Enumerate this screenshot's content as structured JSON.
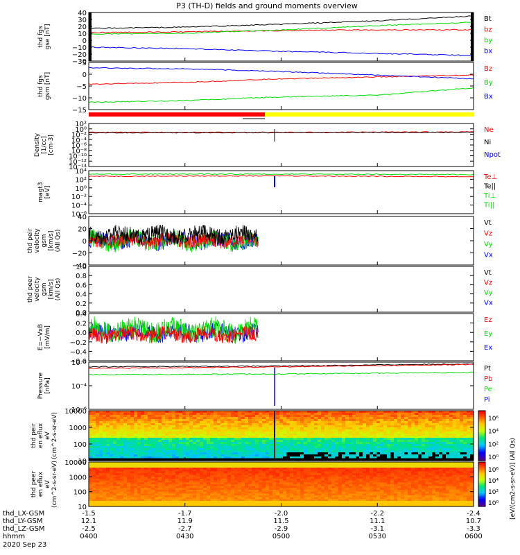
{
  "title": "P3 (TH-D) fields and ground moments overview",
  "colors": {
    "black": "#000000",
    "red": "#ff0000",
    "green": "#00dd00",
    "blue": "#0000ff",
    "yellow": "#ffff00"
  },
  "footer": {
    "rows": [
      {
        "label": "thd_LX-GSM",
        "values": [
          "-1.5",
          "-1.7",
          "-2.0",
          "-2.2",
          "-2.4"
        ]
      },
      {
        "label": "thd_LY-GSM",
        "values": [
          "12.1",
          "11.9",
          "11.5",
          "11.1",
          "10.7"
        ]
      },
      {
        "label": "thd_LZ-GSM",
        "values": [
          "-2.5",
          "-2.7",
          "-2.9",
          "-3.1",
          "-3.3"
        ]
      },
      {
        "label": "hhmm",
        "values": [
          "0400",
          "0430",
          "0500",
          "0530",
          "0600"
        ]
      }
    ],
    "date": "2020 Sep 23"
  },
  "colorbar": {
    "label": "[eV/(cm2-s-sr-eV)] (All Qs)",
    "ticks_upper": [
      "10⁶",
      "10⁴",
      "10²",
      "10⁰"
    ],
    "ticks_lower": [
      "10⁶",
      "10⁴",
      "10²",
      "10⁰"
    ]
  },
  "chart_data": [
    {
      "type": "line",
      "ylabel": "thd fgs gse [nT]",
      "ylim": [
        -30,
        40
      ],
      "yticks": [
        "40",
        "30",
        "20",
        "10",
        "0",
        "−10",
        "−20",
        "−30"
      ],
      "legend": [
        {
          "name": "Bt",
          "color": "black"
        },
        {
          "name": "bz",
          "color": "red"
        },
        {
          "name": "by",
          "color": "green"
        },
        {
          "name": "bx",
          "color": "blue"
        }
      ],
      "series": [
        {
          "name": "Bt",
          "color": "black",
          "x": [
            0,
            0.25,
            0.5,
            0.75,
            1
          ],
          "y": [
            17,
            19,
            23,
            28,
            35
          ]
        },
        {
          "name": "bz",
          "color": "red",
          "x": [
            0,
            0.25,
            0.5,
            0.75,
            1
          ],
          "y": [
            11,
            12,
            14,
            15,
            15
          ]
        },
        {
          "name": "by",
          "color": "green",
          "x": [
            0,
            0.25,
            0.5,
            0.75,
            1
          ],
          "y": [
            9,
            10,
            15,
            21,
            26
          ]
        },
        {
          "name": "bx",
          "color": "blue",
          "x": [
            0,
            0.25,
            0.5,
            0.75,
            1
          ],
          "y": [
            -10,
            -12,
            -16,
            -19,
            -22
          ]
        }
      ]
    },
    {
      "type": "line",
      "ylabel": "thd fgs gsm [nT]",
      "ylim": [
        -18,
        8
      ],
      "yticks": [
        "5",
        "0",
        "−5",
        "−10",
        "−15"
      ],
      "legend": [
        {
          "name": "Bz",
          "color": "red"
        },
        {
          "name": "By",
          "color": "green"
        },
        {
          "name": "Bx",
          "color": "blue"
        }
      ],
      "series": [
        {
          "name": "Bz",
          "color": "red",
          "x": [
            0,
            0.25,
            0.5,
            0.75,
            1
          ],
          "y": [
            -4,
            -3,
            -1,
            0,
            1
          ]
        },
        {
          "name": "By",
          "color": "green",
          "x": [
            0,
            0.25,
            0.5,
            0.75,
            1
          ],
          "y": [
            -14,
            -13,
            -11,
            -10,
            -6
          ]
        },
        {
          "name": "Bx",
          "color": "blue",
          "x": [
            0,
            0.25,
            0.5,
            0.75,
            1
          ],
          "y": [
            5,
            4.5,
            3,
            1,
            -1
          ]
        }
      ]
    },
    {
      "type": "line",
      "ylabel": "Density [1/cc] [cm-3]",
      "ylim": [
        -14,
        4
      ],
      "yticks": [
        "10²",
        "10⁰",
        "10⁻²",
        "10⁻⁴",
        "10⁻⁶",
        "10⁻⁸",
        "10⁻¹⁰",
        "10⁻¹²",
        "10⁻¹⁴"
      ],
      "legend": [
        {
          "name": "Ne",
          "color": "red"
        },
        {
          "name": "Ni",
          "color": "black"
        },
        {
          "name": "Npot",
          "color": "blue"
        }
      ],
      "series": [
        {
          "name": "Ne",
          "color": "red",
          "x": [
            0,
            0.5,
            1
          ],
          "y": [
            0.3,
            0.3,
            0.5
          ]
        },
        {
          "name": "Ni",
          "color": "black",
          "x": [
            0,
            0.5,
            1
          ],
          "y": [
            0.1,
            0.2,
            0.3
          ]
        }
      ]
    },
    {
      "type": "line",
      "ylabel": "magt3 [eV]",
      "ylim": [
        -6,
        4
      ],
      "yticks": [
        "10⁴",
        "10²",
        "10⁰",
        "10⁻²",
        "10⁻⁴",
        "10⁻⁶"
      ],
      "legend": [
        {
          "name": "Te⊥",
          "color": "red"
        },
        {
          "name": "Te||",
          "color": "black"
        },
        {
          "name": "Ti⊥",
          "color": "green"
        },
        {
          "name": "Ti||",
          "color": "green"
        }
      ],
      "series": [
        {
          "name": "Ti",
          "color": "green",
          "x": [
            0,
            0.5,
            1
          ],
          "y": [
            3.2,
            3.2,
            3.1
          ]
        },
        {
          "name": "Te",
          "color": "red",
          "x": [
            0,
            0.5,
            1
          ],
          "y": [
            2.7,
            2.8,
            2.6
          ]
        }
      ]
    },
    {
      "type": "line",
      "ylabel": "thd peir velocity gsm [km/s] (All Qs)",
      "ylim": [
        -40,
        40
      ],
      "yticks": [
        "40",
        "20",
        "0",
        "−20",
        "−40"
      ],
      "legend": [
        {
          "name": "Vt",
          "color": "black"
        },
        {
          "name": "Vz",
          "color": "red"
        },
        {
          "name": "Vy",
          "color": "green"
        },
        {
          "name": "Vx",
          "color": "blue"
        }
      ],
      "series": []
    },
    {
      "type": "line",
      "ylabel": "thd peer velocity gsm [km/s] (All Qs)",
      "ylim": [
        0,
        1
      ],
      "yticks": [
        "1.0",
        "0.8",
        "0.6",
        "0.4",
        "0.2",
        "0.0"
      ],
      "legend": [
        {
          "name": "Vt",
          "color": "black"
        },
        {
          "name": "Vz",
          "color": "red"
        },
        {
          "name": "Vy",
          "color": "green"
        },
        {
          "name": "Vx",
          "color": "blue"
        }
      ],
      "series": []
    },
    {
      "type": "line",
      "ylabel": "E=−VxB [mV/m]",
      "ylim": [
        -0.6,
        0.4
      ],
      "yticks": [
        "0.4",
        "0.2",
        "0.0",
        "−0.2",
        "−0.4",
        "−0.6"
      ],
      "legend": [
        {
          "name": "Ez",
          "color": "red"
        },
        {
          "name": "Ey",
          "color": "green"
        },
        {
          "name": "Ex",
          "color": "blue"
        }
      ],
      "series": []
    },
    {
      "type": "line",
      "ylabel": "Pressure [nPa]",
      "ylim": [
        -6,
        0
      ],
      "yticks": [
        "10⁻²",
        "10⁻⁴",
        "10⁻⁶"
      ],
      "legend": [
        {
          "name": "Pt",
          "color": "black"
        },
        {
          "name": "Pb",
          "color": "red"
        },
        {
          "name": "Pe",
          "color": "green"
        },
        {
          "name": "Pi",
          "color": "blue"
        }
      ],
      "series": [
        {
          "name": "Pt",
          "color": "black",
          "x": [
            0,
            0.5,
            1
          ],
          "y": [
            -0.6,
            -0.5,
            -0.2
          ]
        },
        {
          "name": "Pb",
          "color": "red",
          "x": [
            0,
            0.5,
            1
          ],
          "y": [
            -0.8,
            -0.6,
            -0.3
          ]
        },
        {
          "name": "Pe",
          "color": "green",
          "x": [
            0,
            0.5,
            1
          ],
          "y": [
            -1.6,
            -1.5,
            -1.3
          ]
        }
      ]
    },
    {
      "type": "heatmap",
      "ylabel": "thd peir en eflux eV (cm^2-s-sr-eV)",
      "ylim": [
        5,
        15000
      ],
      "yticks": [
        "10000",
        "1000",
        "100",
        "10"
      ]
    },
    {
      "type": "heatmap",
      "ylabel": "thd peer en eflux eV (cm^2-s-sr-eV)",
      "ylim": [
        5,
        15000
      ],
      "yticks": [
        "10000",
        "1000",
        "100",
        "10"
      ]
    }
  ]
}
